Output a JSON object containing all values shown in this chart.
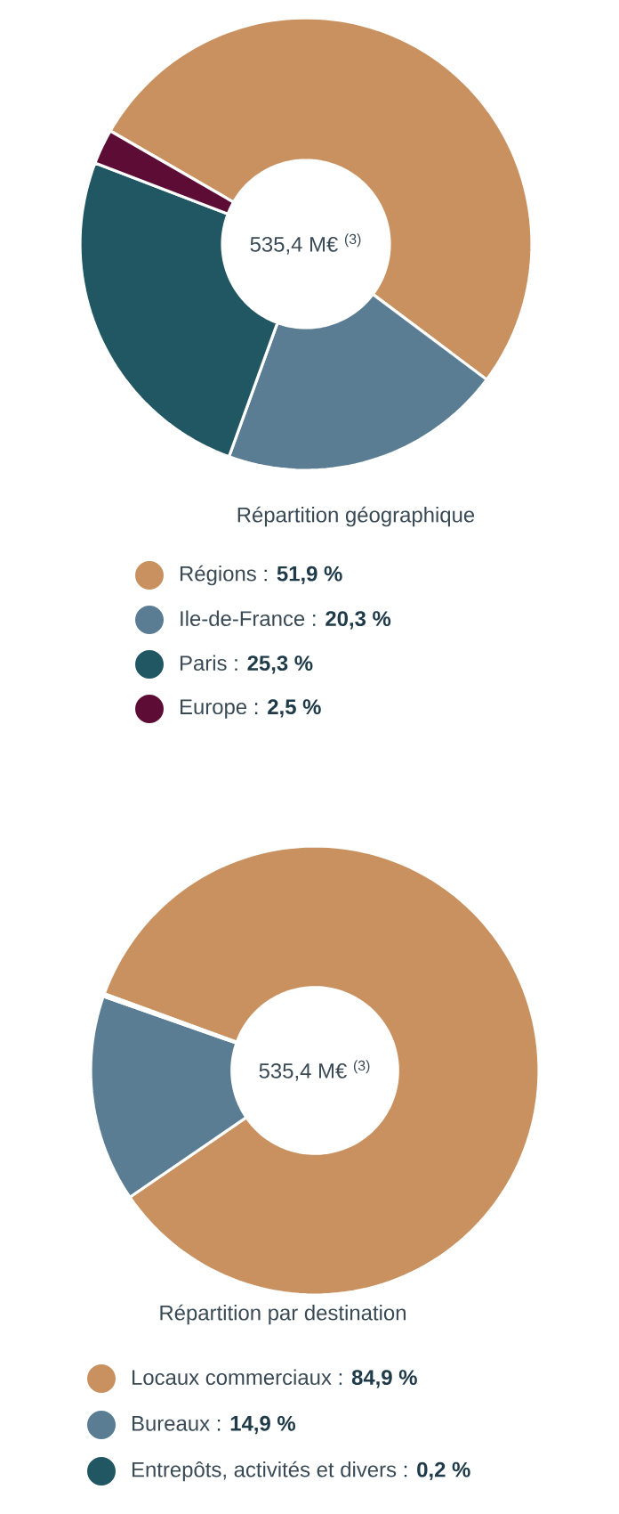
{
  "chart_data": [
    {
      "type": "donut",
      "title": "Répartition géographique",
      "categories": [
        "Régions",
        "Ile-de-France",
        "Paris",
        "Europe"
      ],
      "values": [
        51.9,
        20.3,
        25.3,
        2.5
      ],
      "colors": [
        "#c8915f",
        "#5a7d93",
        "#215663",
        "#5c0c35"
      ],
      "value_labels": [
        ": **51,9 %**",
        ": **20,3 %**",
        ": **25,3 %**",
        ": **2,5 %**"
      ],
      "legend": "bottom",
      "annotations": [
        "535,4 M€ $^{(3)}$"
      ]
    },
    {
      "type": "donut",
      "title": "Répartition par destination",
      "categories": [
        "Locaux commerciaux",
        "Bureaux",
        "Entrepôts, activités et divers"
      ],
      "values": [
        84.9,
        14.9,
        0.2
      ],
      "colors": [
        "#c8915f",
        "#5a7d93",
        "#215663"
      ],
      "value_labels": [
        ": **84,9 %**",
        ": **14,9 %**",
        ": **0,2 %**"
      ],
      "legend": "bottom",
      "annotations": [
        "535,4 M€ $^{(3)}$"
      ]
    }
  ]
}
